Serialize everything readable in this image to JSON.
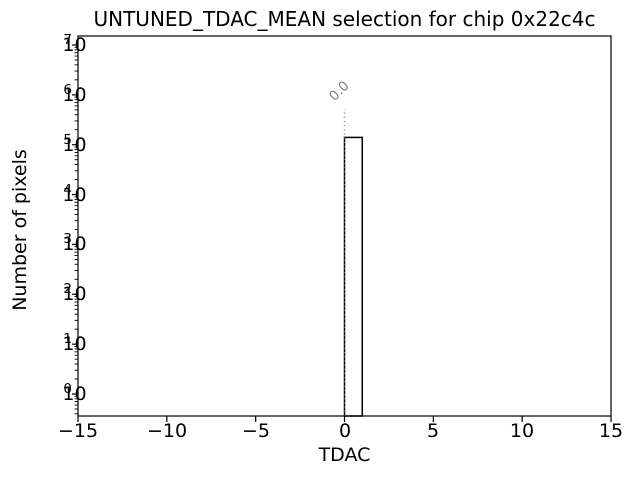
{
  "chart_data": {
    "type": "bar",
    "title": "UNTUNED_TDAC_MEAN selection for chip 0x22c4c",
    "xlabel": "TDAC",
    "ylabel": "Number of pixels",
    "xlim": [
      -15,
      15
    ],
    "yscale": "log",
    "ylim": [
      1,
      10000000
    ],
    "grid": false,
    "xticks": [
      -15,
      -10,
      -5,
      0,
      5,
      10,
      15
    ],
    "xtick_labels": [
      "−15",
      "−10",
      "−5",
      "0",
      "5",
      "10",
      "15"
    ],
    "ytick_base": "10",
    "ytick_exponents": [
      0,
      1,
      2,
      3,
      4,
      5,
      6,
      7
    ],
    "bars": [
      {
        "x_start": 0,
        "x_end": 1,
        "count": 140000
      }
    ],
    "mean_line": {
      "x": 0.0,
      "label": "0.0",
      "style": "dotted",
      "color": "#808080"
    },
    "colors": {
      "bar_fill": "#ffffff",
      "bar_edge": "#000000",
      "axis": "#000000",
      "text": "#000000",
      "background": "#ffffff"
    }
  }
}
